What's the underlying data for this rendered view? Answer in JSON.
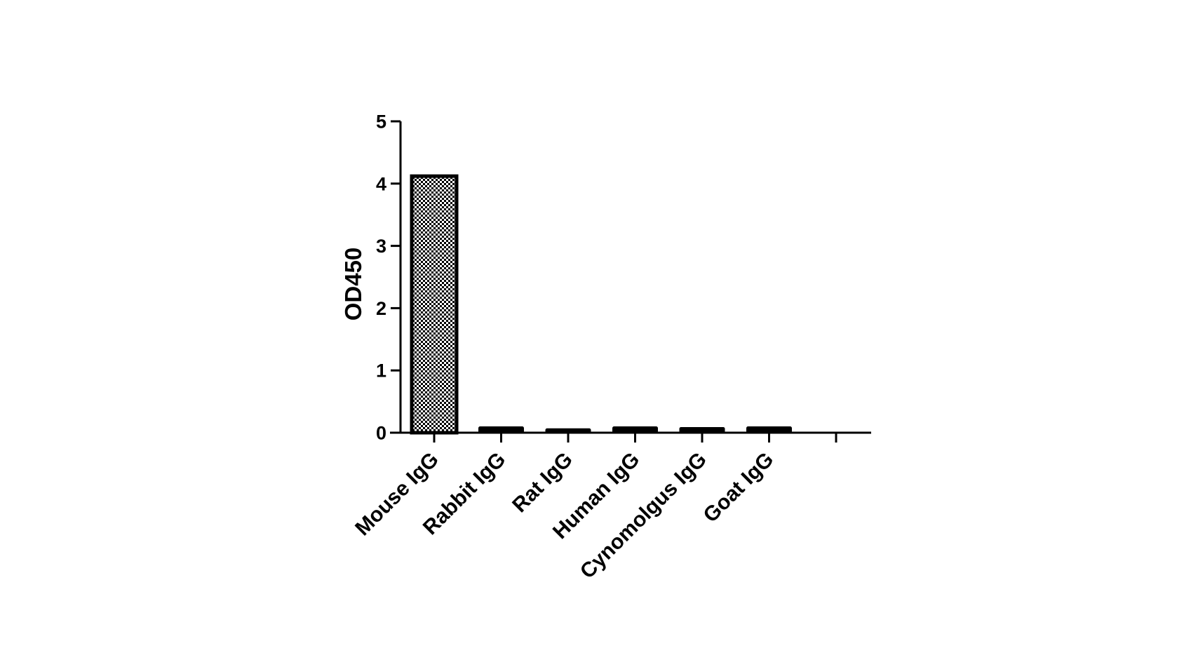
{
  "chart_data": {
    "type": "bar",
    "title": "",
    "xlabel": "",
    "ylabel": "OD450",
    "categories": [
      "Mouse IgG",
      "Rabbit IgG",
      "Rat IgG",
      "Human IgG",
      "Cynomolgus IgG",
      "Goat IgG"
    ],
    "values": [
      4.12,
      0.05,
      0.02,
      0.05,
      0.04,
      0.05
    ],
    "ylim": [
      0,
      5
    ],
    "yticks": [
      "0",
      "1",
      "2",
      "3",
      "4",
      "5"
    ],
    "x_slots": 7,
    "grid": false,
    "legend": "none",
    "colors": {
      "axis": "#000000",
      "bar_outline": "#000000",
      "pattern_dark": "#000000",
      "pattern_light": "#ffffff",
      "bar_fill_low": "#000000"
    }
  }
}
